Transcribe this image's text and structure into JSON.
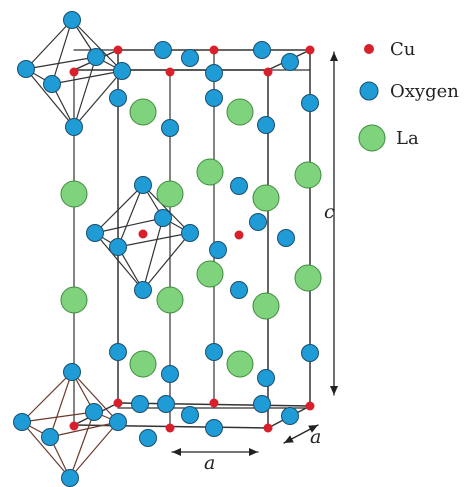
{
  "legend": {
    "cu": {
      "label": "Cu",
      "color": "#d7202b"
    },
    "oxygen": {
      "label": "Oxygen",
      "color": "#1f9bd6"
    },
    "la": {
      "label": "La",
      "color": "#7fd37c"
    }
  },
  "dimensions": {
    "c": "c",
    "a_front": "a",
    "a_side": "a"
  },
  "colors": {
    "bond": "#333333",
    "octahedron_upper": "#333333",
    "octahedron_lower": "#6b3a2e",
    "atom_outline": "#1a4f6e"
  }
}
